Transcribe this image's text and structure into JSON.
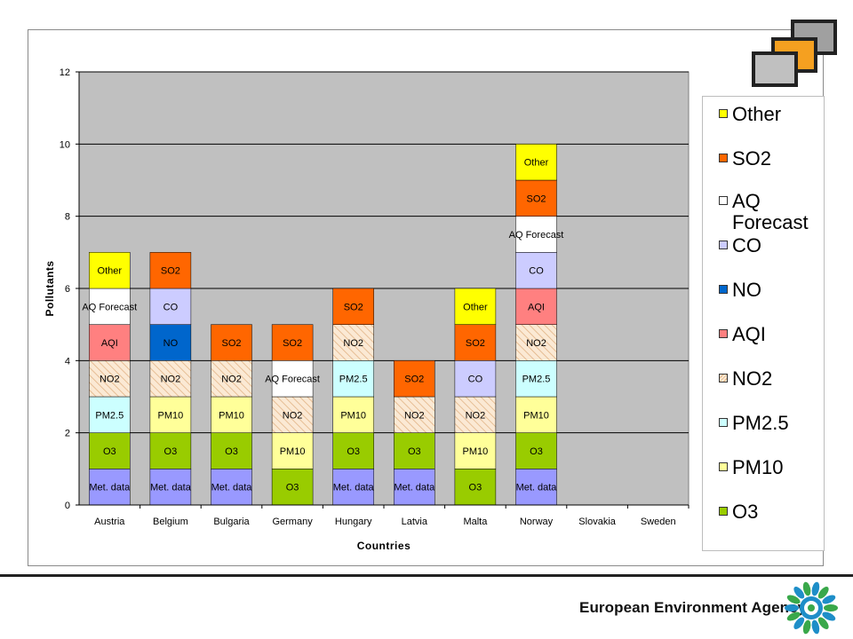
{
  "footer": {
    "agency_name": "European Environment Agency"
  },
  "colors": {
    "Met. data": "#9999ff",
    "O3": "#99cc00",
    "PM10": "#ffff99",
    "PM2.5": "#ccffff",
    "NO2": "#fbe9d4",
    "AQI": "#ff8080",
    "NO": "#0066cc",
    "CO": "#ccccff",
    "AQ Forecast": "#ffffff",
    "SO2": "#ff6600",
    "Other": "#ffff00",
    "plot_background": "#c0c0c0"
  },
  "legend": [
    "Other",
    "SO2",
    "AQ Forecast",
    "CO",
    "NO",
    "AQI",
    "NO2",
    "PM2.5",
    "PM10",
    "O3"
  ],
  "chart_data": {
    "type": "bar",
    "stacked": true,
    "title": "",
    "xlabel": "Countries",
    "ylabel": "Pollutants",
    "ylim": [
      0,
      12
    ],
    "yticks": [
      "0",
      "2",
      "4",
      "6",
      "8",
      "10",
      "12"
    ],
    "grid": true,
    "legend_position": "right",
    "categories": [
      "Austria",
      "Belgium",
      "Bulgaria",
      "Germany",
      "Hungary",
      "Latvia",
      "Malta",
      "Norway",
      "Slovakia",
      "Sweden"
    ],
    "stacks": [
      [
        "Met. data",
        "O3",
        "PM2.5",
        "NO2",
        "AQI",
        "AQ Forecast",
        "Other"
      ],
      [
        "Met. data",
        "O3",
        "PM10",
        "NO2",
        "NO",
        "CO",
        "SO2"
      ],
      [
        "Met. data",
        "O3",
        "PM10",
        "NO2",
        "SO2"
      ],
      [
        "O3",
        "PM10",
        "NO2",
        "AQ Forecast",
        "SO2"
      ],
      [
        "Met. data",
        "O3",
        "PM10",
        "PM2.5",
        "NO2",
        "SO2"
      ],
      [
        "Met. data",
        "O3",
        "NO2",
        "SO2"
      ],
      [
        "O3",
        "PM10",
        "NO2",
        "CO",
        "SO2",
        "Other"
      ],
      [
        "Met. data",
        "O3",
        "PM10",
        "PM2.5",
        "NO2",
        "AQI",
        "CO",
        "AQ Forecast",
        "SO2",
        "Other"
      ],
      [],
      []
    ]
  }
}
